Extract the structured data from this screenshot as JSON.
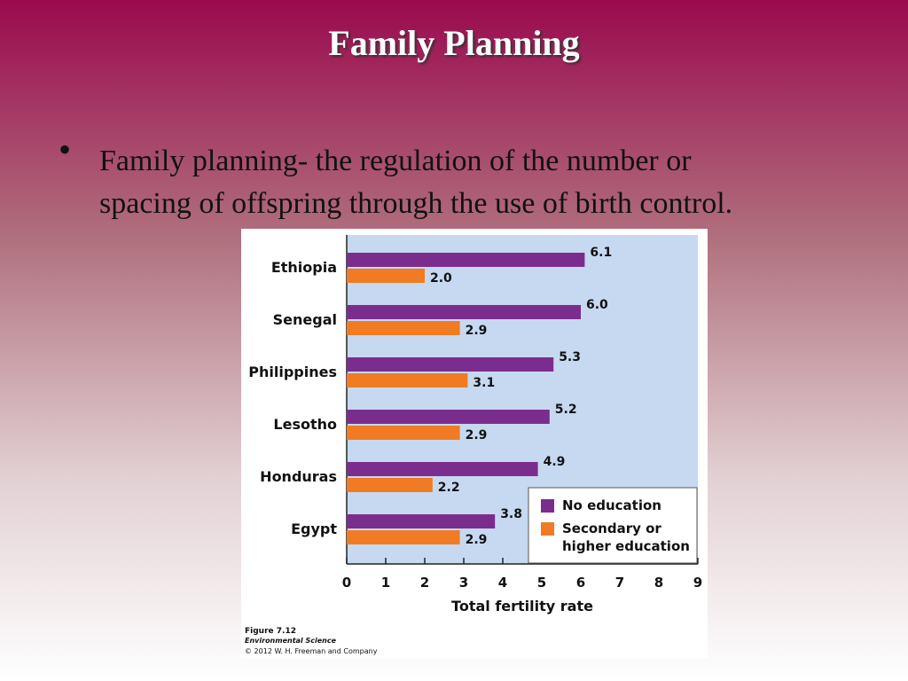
{
  "slide": {
    "title": "Family Planning",
    "bullet_lines": [
      "Family planning- the regulation of the number or",
      "spacing of offspring through the use of birth control."
    ]
  },
  "chart_data": {
    "type": "hbar",
    "categories": [
      "Ethiopia",
      "Senegal",
      "Philippines",
      "Lesotho",
      "Honduras",
      "Egypt"
    ],
    "series": [
      {
        "name": "No education",
        "color": "#7b2d8e",
        "values": [
          6.1,
          6.0,
          5.3,
          5.2,
          4.9,
          3.8
        ],
        "value_labels": [
          "6.1",
          "6.0",
          "5.3",
          "5.2",
          "4.9",
          "3.8"
        ]
      },
      {
        "name": "Secondary or higher education",
        "color": "#f07b22",
        "values": [
          2.0,
          2.9,
          3.1,
          2.9,
          2.2,
          2.9
        ],
        "value_labels": [
          "2.0",
          "2.9",
          "3.1",
          "2.9",
          "2.2",
          "2.9"
        ]
      }
    ],
    "xlim": [
      0,
      9
    ],
    "xticks": [
      0,
      1,
      2,
      3,
      4,
      5,
      6,
      7,
      8,
      9
    ],
    "xlabel": "Total fertility rate",
    "legend": "lower right",
    "caption": [
      "Figure 7.12",
      "Environmental Science",
      "© 2012 W. H. Freeman and Company"
    ]
  }
}
